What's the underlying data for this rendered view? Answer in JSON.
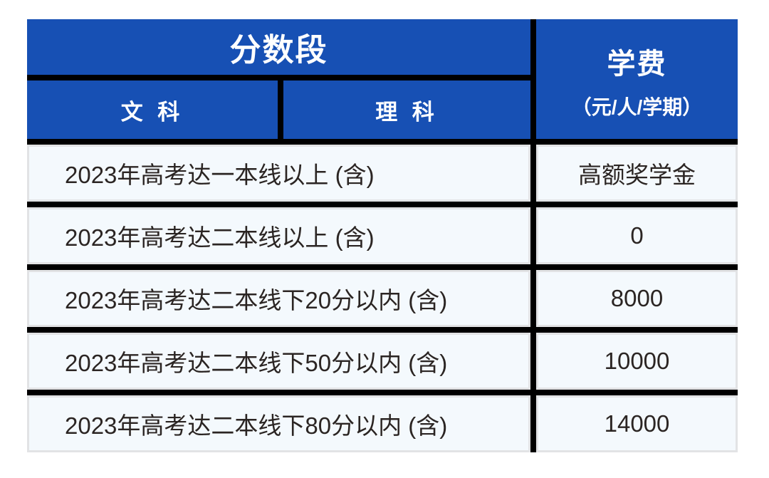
{
  "chart_data": {
    "type": "table",
    "title": "",
    "header": {
      "score_band_group": "分数段",
      "subcol_liberal_arts": "文 科",
      "subcol_science": "理 科",
      "tuition_label": "学费",
      "tuition_unit": "（元/人/学期）"
    },
    "columns": [
      "分数段（文科/理科）",
      "学费（元/人/学期）"
    ],
    "rows": [
      {
        "score_band": "2023年高考达一本线以上 (含)",
        "tuition": "高额奖学金"
      },
      {
        "score_band": "2023年高考达二本线以上 (含)",
        "tuition": "0"
      },
      {
        "score_band": "2023年高考达二本线下20分以内 (含)",
        "tuition": "8000"
      },
      {
        "score_band": "2023年高考达二本线下50分以内 (含)",
        "tuition": "10000"
      },
      {
        "score_band": "2023年高考达二本线下80分以内 (含)",
        "tuition": "14000"
      }
    ],
    "colors": {
      "header_bg": "#1750B4",
      "header_text": "#FFFFFF",
      "cell_bg": "#F4F9FD",
      "cell_border": "#E2E3E5",
      "grid_lines": "#000000",
      "body_text": "#2B2523"
    },
    "layout_hints": {
      "grid": "on",
      "header_rows": 2,
      "tuition_column_spans_both_header_rows": true,
      "score_band_spans_two_subcolumns": true
    }
  }
}
